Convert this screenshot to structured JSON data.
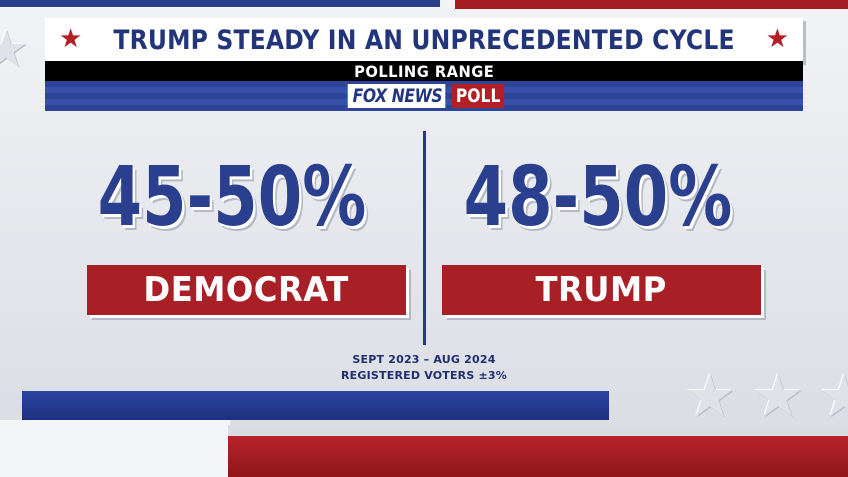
{
  "header": {
    "title": "TRUMP STEADY IN AN UNPRECEDENTED CYCLE",
    "subtitle": "POLLING RANGE",
    "logo_fox": "FOX NEWS",
    "logo_poll": "POLL"
  },
  "left": {
    "range": "45-50%",
    "label": "DEMOCRAT"
  },
  "right": {
    "range": "48-50%",
    "label": "TRUMP"
  },
  "footer": {
    "dates": "SEPT 2023 – AUG 2024",
    "sample": "REGISTERED VOTERS ±3%"
  },
  "colors": {
    "navy": "#2a3f8e",
    "red": "#a81f25",
    "background": "#e6e8ed"
  },
  "icons": [
    "star-icon",
    "outline-star-icon"
  ]
}
